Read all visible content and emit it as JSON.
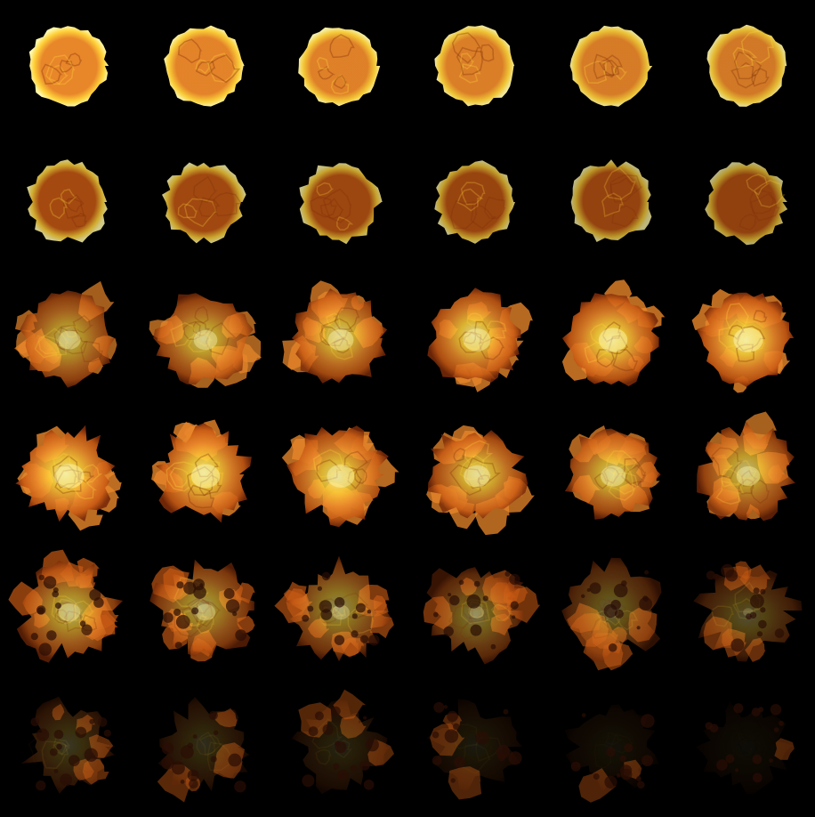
{
  "sprite_sheet": {
    "background_color": "#000000",
    "columns": 6,
    "rows": 6,
    "frame_count": 36,
    "palette": {
      "core_hot": "#fff7a8",
      "core_bright": "#ffd23a",
      "inner_orange": "#e8862a",
      "body_orange": "#c85a14",
      "dark_ember": "#7a2a08",
      "smoke": "#2a0d04"
    },
    "rows_data": [
      {
        "stage": "fireball",
        "brightness": [
          1.0,
          0.98,
          0.96,
          0.94,
          0.92,
          0.9
        ],
        "fill_level": [
          1.0,
          1.0,
          1.0,
          1.0,
          1.0,
          1.0
        ]
      },
      {
        "stage": "expanding",
        "brightness": [
          0.82,
          0.8,
          0.78,
          0.76,
          0.74,
          0.72
        ],
        "fill_level": [
          0.95,
          0.95,
          0.95,
          0.95,
          0.95,
          0.95
        ]
      },
      {
        "stage": "billowing",
        "brightness": [
          0.7,
          0.74,
          0.8,
          0.86,
          0.9,
          0.92
        ],
        "fill_level": [
          0.9,
          0.9,
          0.9,
          0.9,
          0.9,
          0.9
        ]
      },
      {
        "stage": "bursting",
        "brightness": [
          0.92,
          0.9,
          0.86,
          0.82,
          0.78,
          0.74
        ],
        "fill_level": [
          0.85,
          0.85,
          0.82,
          0.8,
          0.78,
          0.76
        ]
      },
      {
        "stage": "dissipating",
        "brightness": [
          0.68,
          0.62,
          0.55,
          0.45,
          0.38,
          0.32
        ],
        "fill_level": [
          0.72,
          0.7,
          0.66,
          0.6,
          0.52,
          0.46
        ]
      },
      {
        "stage": "embers",
        "brightness": [
          0.22,
          0.18,
          0.14,
          0.1,
          0.07,
          0.04
        ],
        "fill_level": [
          0.3,
          0.26,
          0.22,
          0.16,
          0.1,
          0.05
        ]
      }
    ]
  }
}
